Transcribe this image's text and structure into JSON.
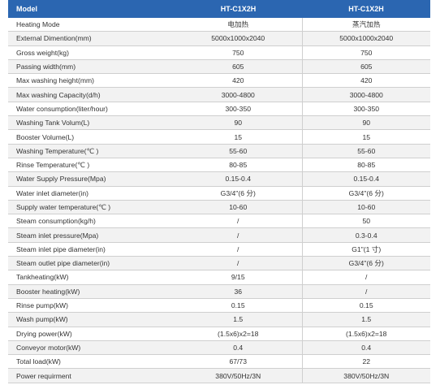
{
  "table": {
    "headers": [
      "Model",
      "HT-C1X2H",
      "HT-C1X2H"
    ],
    "rows": [
      [
        "Heating Mode",
        "电加热",
        "蒸汽加热"
      ],
      [
        "External Dimention(mm)",
        "5000x1000x2040",
        "5000x1000x2040"
      ],
      [
        "Gross weight(kg)",
        "750",
        "750"
      ],
      [
        "Passing width(mm)",
        "605",
        "605"
      ],
      [
        "Max washing height(mm)",
        "420",
        "420"
      ],
      [
        "Max washing Capacity(d/h)",
        "3000-4800",
        "3000-4800"
      ],
      [
        "Water consumption(liter/hour)",
        "300-350",
        "300-350"
      ],
      [
        "Washing Tank Volum(L)",
        "90",
        "90"
      ],
      [
        "Booster Volume(L)",
        "15",
        "15"
      ],
      [
        "Washing Temperature(℃ )",
        "55-60",
        "55-60"
      ],
      [
        "Rinse Temperature(℃ )",
        "80-85",
        "80-85"
      ],
      [
        "Water Supply Pressure(Mpa)",
        "0.15-0.4",
        "0.15-0.4"
      ],
      [
        "Water inlet diameter(in)",
        "G3/4\"(6 分)",
        "G3/4\"(6 分)"
      ],
      [
        "Supply water temperature(℃ )",
        "10-60",
        "10-60"
      ],
      [
        "Steam consumption(kg/h)",
        "/",
        "50"
      ],
      [
        "Steam inlet pressure(Mpa)",
        "/",
        "0.3-0.4"
      ],
      [
        "Steam inlet pipe diameter(in)",
        "/",
        "G1\"(1 寸)"
      ],
      [
        "Steam outlet pipe diameter(in)",
        "/",
        "G3/4\"(6 分)"
      ],
      [
        "Tankheating(kW)",
        "9/15",
        "/"
      ],
      [
        "Booster heating(kW)",
        "36",
        "/"
      ],
      [
        "Rinse pump(kW)",
        "0.15",
        "0.15"
      ],
      [
        "Wash pump(kW)",
        "1.5",
        "1.5"
      ],
      [
        "Drying power(kW)",
        "(1.5x6)x2=18",
        "(1.5x6)x2=18"
      ],
      [
        "Conveyor motor(kW)",
        "0.4",
        "0.4"
      ],
      [
        "Total load(kW)",
        "67/73",
        "22"
      ],
      [
        "Power requirment",
        "380V/50Hz/3N",
        "380V/50Hz/3N"
      ]
    ]
  }
}
